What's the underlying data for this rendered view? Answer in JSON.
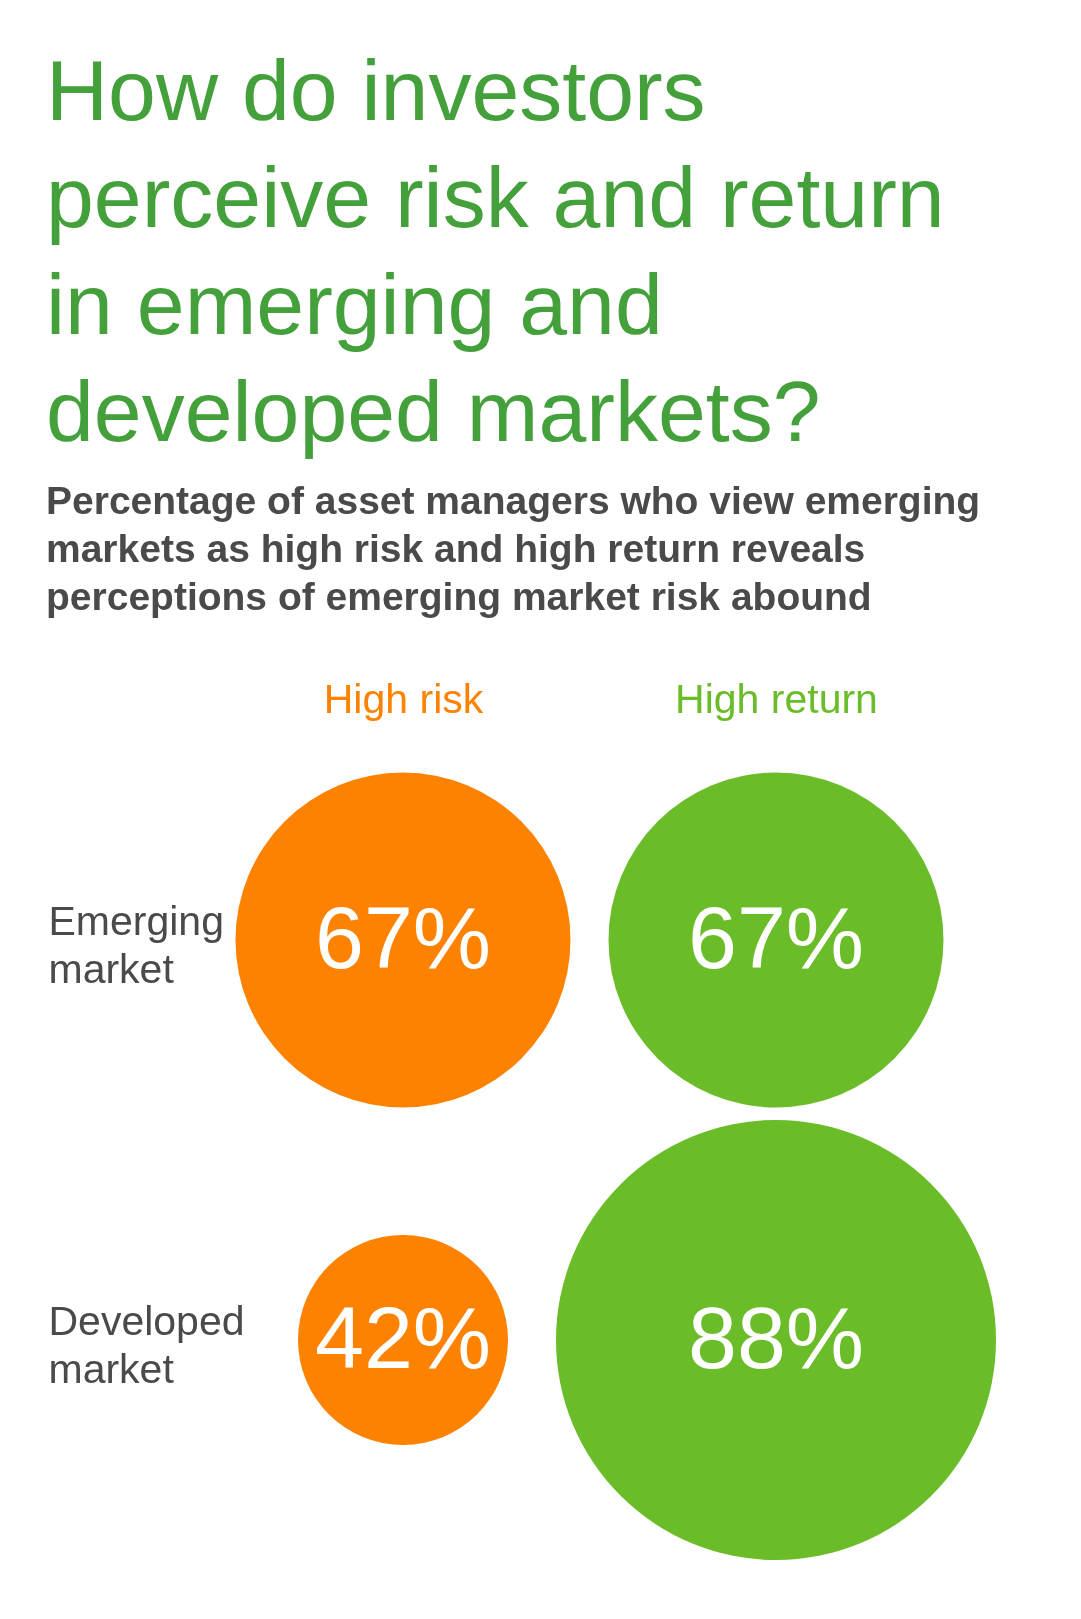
{
  "chart_data": {
    "type": "other",
    "title": "How do investors perceive risk and return in emerging and developed markets?",
    "subtitle": "Percentage of asset managers who view emerging markets as high risk and high return reveals perceptions of emerging market risk abound",
    "categories": [
      "Emerging market",
      "Developed market"
    ],
    "series": [
      {
        "name": "High risk",
        "color": "#fd8200",
        "values": [
          67,
          42
        ],
        "value_labels": [
          "67%",
          "42%"
        ]
      },
      {
        "name": "High return",
        "color": "#6abd28",
        "values": [
          67,
          88
        ],
        "value_labels": [
          "67%",
          "88%"
        ]
      }
    ]
  }
}
